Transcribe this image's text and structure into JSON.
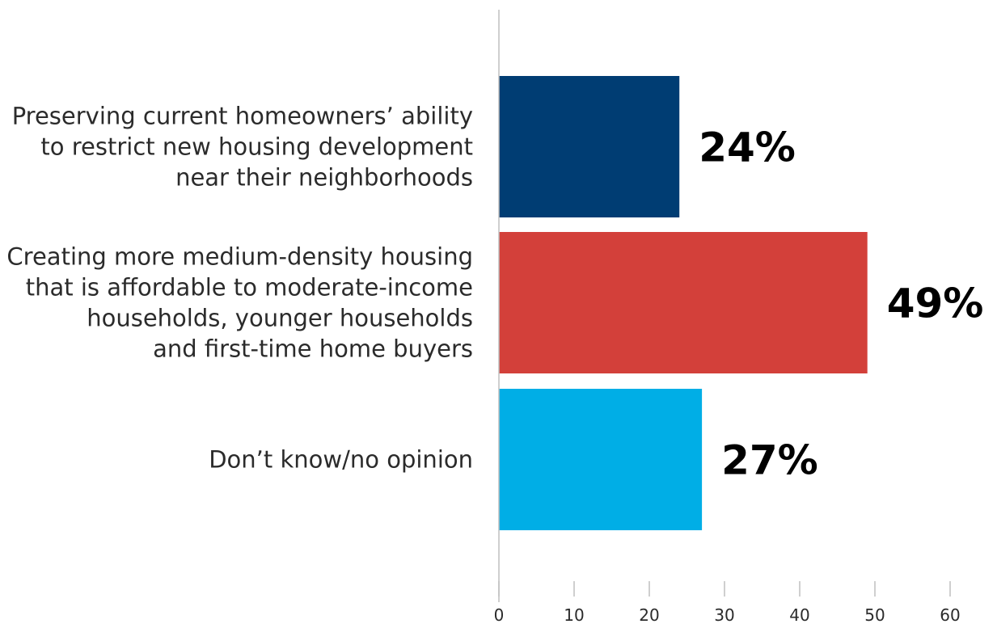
{
  "chart_data": {
    "type": "bar",
    "orientation": "horizontal",
    "categories": [
      [
        "Preserving current homeowners’ ability",
        "to restrict new housing development",
        "near their neighborhoods"
      ],
      [
        "Creating more medium-density housing",
        "that is affordable to moderate-income",
        "households, younger households",
        "and first-time home buyers"
      ],
      [
        "Don’t know/no opinion"
      ]
    ],
    "values": [
      24,
      49,
      27
    ],
    "value_labels": [
      "24%",
      "49%",
      "27%"
    ],
    "colors": [
      "#003d73",
      "#d3403a",
      "#00aee6"
    ],
    "xlim": [
      0,
      60
    ],
    "xticks": [
      0,
      10,
      20,
      30,
      40,
      50,
      60
    ],
    "tick_labels": [
      "0",
      "10",
      "20",
      "30",
      "40",
      "50",
      "60"
    ],
    "title": "",
    "xlabel": "",
    "ylabel": "",
    "grid": false,
    "legend": "none"
  }
}
